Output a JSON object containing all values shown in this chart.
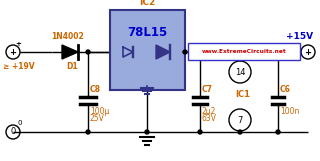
{
  "bg_color": "#ffffff",
  "line_color": "#000000",
  "ic2_box_color": "#99aadd",
  "ic2_box_edge": "#333388",
  "website_box_bg": "#ffffff",
  "website_box_edge": "#3333cc",
  "website_text": "www.ExtremeCircuits.net",
  "website_text_color": "#cc0000",
  "orange_color": "#cc6600",
  "blue_color": "#0000cc",
  "ic2_title": "IC2",
  "ic2_label": "78L15",
  "ic1_label": "IC1",
  "d1_label": "D1",
  "diode_label": "1N4002",
  "c8_label": "C8",
  "c8_val1": "100μ",
  "c8_val2": "25V",
  "c7_label": "C7",
  "c7_val1": "2μ2",
  "c7_val2": "63V",
  "c6_label": "C6",
  "c6_val": "100n",
  "pin14": "14",
  "pin7": "7",
  "input_label": "≥ +19V",
  "plus15v_label": "+15V",
  "plus_sign": "+",
  "zero_label": "0"
}
